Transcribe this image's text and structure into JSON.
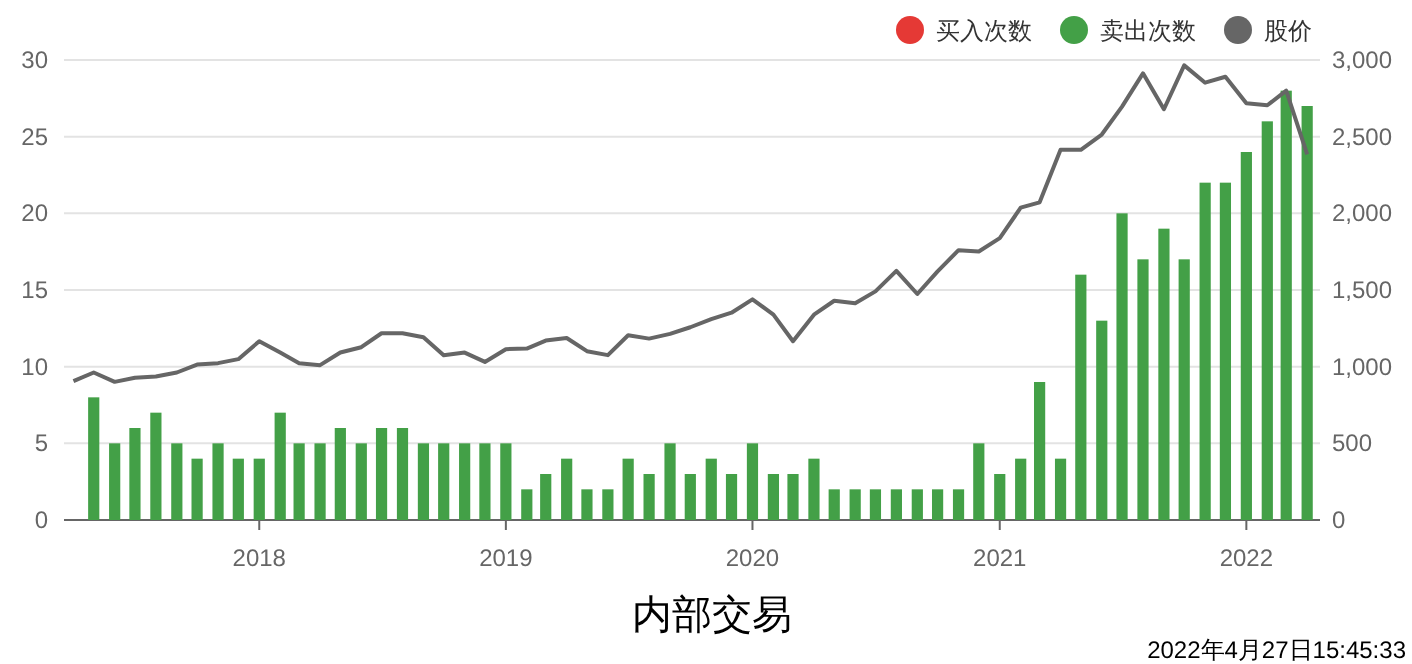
{
  "chart_data": {
    "type": "bar",
    "title": "内部交易",
    "annotations": [
      "2022年4月27日15:45:33"
    ],
    "x": [
      "2017-05",
      "2017-06",
      "2017-07",
      "2017-08",
      "2017-09",
      "2017-10",
      "2017-11",
      "2017-12",
      "2018-01",
      "2018-02",
      "2018-03",
      "2018-04",
      "2018-05",
      "2018-06",
      "2018-07",
      "2018-08",
      "2018-09",
      "2018-10",
      "2018-11",
      "2018-12",
      "2019-01",
      "2019-02",
      "2019-03",
      "2019-04",
      "2019-05",
      "2019-06",
      "2019-07",
      "2019-08",
      "2019-09",
      "2019-10",
      "2019-11",
      "2019-12",
      "2020-01",
      "2020-02",
      "2020-03",
      "2020-04",
      "2020-05",
      "2020-06",
      "2020-07",
      "2020-08",
      "2020-09",
      "2020-10",
      "2020-11",
      "2020-12",
      "2021-01",
      "2021-02",
      "2021-03",
      "2021-04",
      "2021-05",
      "2021-06",
      "2021-07",
      "2021-08",
      "2021-09",
      "2021-10",
      "2021-11",
      "2021-12",
      "2022-01",
      "2022-02",
      "2022-03",
      "2022-04"
    ],
    "series": [
      {
        "name": "买入次数",
        "color": "#e53935",
        "values": [
          null,
          null,
          null,
          null,
          null,
          null,
          null,
          null,
          null,
          null,
          null,
          null,
          null,
          null,
          null,
          null,
          null,
          null,
          null,
          null,
          null,
          null,
          null,
          null,
          null,
          null,
          null,
          null,
          null,
          null,
          null,
          null,
          null,
          null,
          null,
          null,
          null,
          null,
          null,
          null,
          null,
          null,
          null,
          null,
          null,
          null,
          null,
          null,
          null,
          null,
          null,
          null,
          null,
          null,
          null,
          null,
          null,
          null,
          null,
          null
        ]
      },
      {
        "name": "卖出次数",
        "color": "#43a047",
        "values": [
          8,
          5,
          6,
          7,
          5,
          4,
          5,
          4,
          4,
          7,
          5,
          5,
          6,
          5,
          6,
          6,
          5,
          5,
          5,
          5,
          5,
          2,
          3,
          4,
          2,
          2,
          4,
          3,
          5,
          3,
          4,
          3,
          5,
          3,
          3,
          4,
          2,
          2,
          2,
          2,
          2,
          2,
          2,
          5,
          3,
          4,
          9,
          4,
          16,
          13,
          20,
          17,
          19,
          17,
          22,
          22,
          24,
          26,
          28,
          27
        ]
      },
      {
        "name": "股价",
        "type": "line",
        "axis": "y2",
        "color": "#666666",
        "x": [
          "2017-04",
          "2017-05",
          "2017-06",
          "2017-07",
          "2017-08",
          "2017-09",
          "2017-10",
          "2017-11",
          "2017-12",
          "2018-01",
          "2018-02",
          "2018-03",
          "2018-04",
          "2018-05",
          "2018-06",
          "2018-07",
          "2018-08",
          "2018-09",
          "2018-10",
          "2018-11",
          "2018-12",
          "2019-01",
          "2019-02",
          "2019-03",
          "2019-04",
          "2019-05",
          "2019-06",
          "2019-07",
          "2019-08",
          "2019-09",
          "2019-10",
          "2019-11",
          "2019-12",
          "2020-01",
          "2020-02",
          "2020-03",
          "2020-04",
          "2020-05",
          "2020-06",
          "2020-07",
          "2020-08",
          "2020-09",
          "2020-10",
          "2020-11",
          "2020-12",
          "2021-01",
          "2021-02",
          "2021-03",
          "2021-04",
          "2021-05",
          "2021-06",
          "2021-07",
          "2021-08",
          "2021-09",
          "2021-10",
          "2021-11",
          "2021-12",
          "2022-01",
          "2022-02",
          "2022-03",
          "2022-04"
        ],
        "values": [
          906,
          962,
          901,
          928,
          936,
          962,
          1014,
          1023,
          1049,
          1166,
          1092,
          1023,
          1010,
          1092,
          1127,
          1218,
          1218,
          1192,
          1075,
          1092,
          1031,
          1114,
          1118,
          1170,
          1187,
          1101,
          1075,
          1205,
          1183,
          1214,
          1257,
          1310,
          1352,
          1439,
          1339,
          1166,
          1339,
          1430,
          1413,
          1491,
          1625,
          1474,
          1621,
          1760,
          1751,
          1838,
          2037,
          2072,
          2414,
          2414,
          2514,
          2696,
          2913,
          2679,
          2965,
          2852,
          2891,
          2718,
          2705,
          2800,
          2384
        ]
      }
    ],
    "xlim": [
      "2017-03-18",
      "2022-04-20"
    ],
    "xticks": [
      {
        "value": "2018-01",
        "label": "2018"
      },
      {
        "value": "2019-01",
        "label": "2019"
      },
      {
        "value": "2020-01",
        "label": "2020"
      },
      {
        "value": "2021-01",
        "label": "2021"
      },
      {
        "value": "2022-01",
        "label": "2022"
      }
    ],
    "ylim": [
      0,
      30
    ],
    "yticks": [
      0,
      5,
      10,
      15,
      20,
      25,
      30
    ],
    "y2lim": [
      0,
      3000
    ],
    "y2ticks": [
      0,
      500,
      {
        "value": 1000,
        "label": "1,000"
      },
      {
        "value": 1500,
        "label": "1,500"
      },
      {
        "value": 2000,
        "label": "2,000"
      },
      {
        "value": 2500,
        "label": "2,500"
      },
      {
        "value": 3000,
        "label": "3,000"
      }
    ],
    "grid": "y",
    "legend": "top right"
  }
}
